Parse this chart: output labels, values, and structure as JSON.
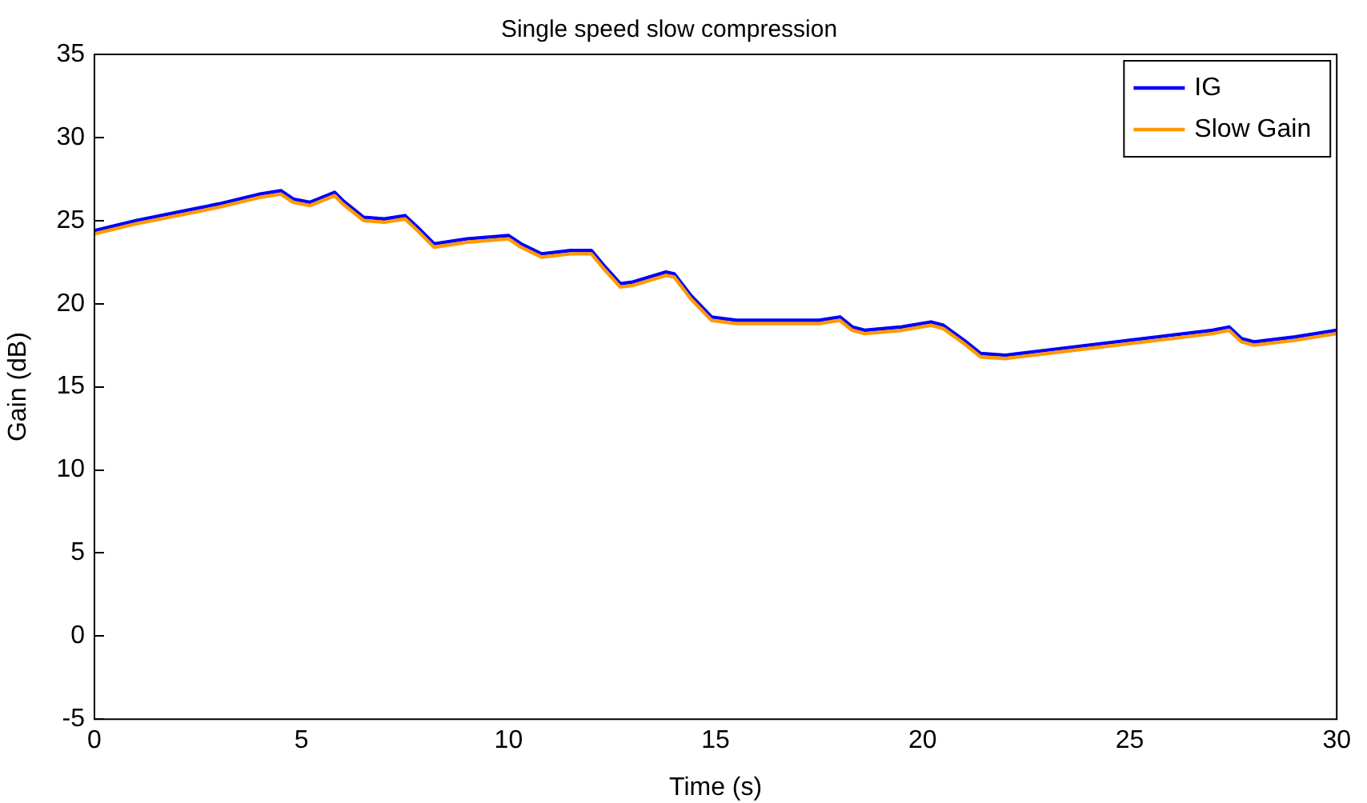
{
  "chart_data": {
    "type": "line",
    "title": "Single speed slow compression",
    "xlabel": "Time (s)",
    "ylabel": "Gain (dB)",
    "x": [
      0,
      1,
      2,
      3,
      4,
      4.5,
      4.8,
      5.2,
      5.8,
      6.0,
      6.5,
      7,
      7.5,
      7.8,
      8.2,
      9,
      10,
      10.3,
      10.8,
      11.5,
      12,
      12.3,
      12.7,
      13,
      13.8,
      14,
      14.4,
      14.9,
      15.5,
      16.5,
      17.5,
      18,
      18.3,
      18.6,
      19.5,
      20.2,
      20.5,
      21,
      21.4,
      22,
      23,
      24,
      25,
      26,
      27,
      27.4,
      27.7,
      28,
      29,
      30
    ],
    "series": [
      {
        "name": "IG",
        "color": "#0000ff",
        "values": [
          24.4,
          25.0,
          25.5,
          26.0,
          26.6,
          26.8,
          26.3,
          26.1,
          26.7,
          26.2,
          25.2,
          25.1,
          25.3,
          24.6,
          23.6,
          23.9,
          24.1,
          23.6,
          23.0,
          23.2,
          23.2,
          22.3,
          21.2,
          21.3,
          21.9,
          21.8,
          20.5,
          19.2,
          19.0,
          19.0,
          19.0,
          19.2,
          18.6,
          18.4,
          18.6,
          18.9,
          18.7,
          17.8,
          17.0,
          16.9,
          17.2,
          17.5,
          17.8,
          18.1,
          18.4,
          18.6,
          17.9,
          17.7,
          18.0,
          18.4
        ]
      },
      {
        "name": "Slow Gain",
        "color": "#ff9900",
        "values": [
          24.2,
          24.8,
          25.3,
          25.8,
          26.4,
          26.6,
          26.1,
          25.9,
          26.5,
          26.0,
          25.0,
          24.9,
          25.1,
          24.4,
          23.4,
          23.7,
          23.9,
          23.4,
          22.8,
          23.0,
          23.0,
          22.1,
          21.0,
          21.1,
          21.7,
          21.6,
          20.3,
          19.0,
          18.8,
          18.8,
          18.8,
          19.0,
          18.4,
          18.2,
          18.4,
          18.7,
          18.5,
          17.6,
          16.8,
          16.7,
          17.0,
          17.3,
          17.6,
          17.9,
          18.2,
          18.4,
          17.7,
          17.5,
          17.8,
          18.2
        ]
      }
    ],
    "xlim": [
      0,
      30
    ],
    "xticks": [
      0,
      5,
      10,
      15,
      20,
      25,
      30
    ],
    "ylim": [
      -5,
      35
    ],
    "yticks": [
      -5,
      0,
      5,
      10,
      15,
      20,
      25,
      30,
      35
    ],
    "grid": false,
    "legend": "top right",
    "marker": "none",
    "line_style": "solid"
  }
}
